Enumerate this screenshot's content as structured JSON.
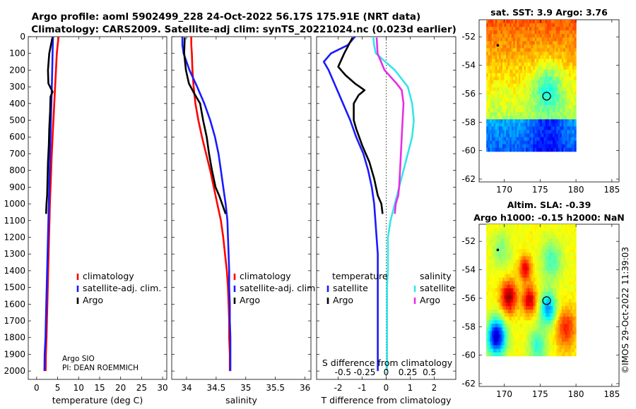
{
  "header": {
    "line1": "Argo profile: aoml 5902499_228 24-Oct-2022 56.17S 175.91E (NRT data)",
    "line2": "Climatology: CARS2009. Satellite-adj clim: synTS_20221024.nc (0.023d earlier)"
  },
  "colors": {
    "climatology": "#ff0000",
    "satellite": "#1a1aff",
    "argo": "#000000",
    "sal_satellite": "#33e6e6",
    "sal_argo": "#e62ee6"
  },
  "chart_data": [
    {
      "id": "temperature",
      "type": "line",
      "xlabel": "temperature (deg C)",
      "xlim": [
        -2,
        31
      ],
      "ylim": [
        2050,
        0
      ],
      "xticks": [
        0,
        5,
        10,
        15,
        20,
        25,
        30
      ],
      "yticks": [
        0,
        100,
        200,
        300,
        400,
        500,
        600,
        700,
        800,
        900,
        1000,
        1100,
        1200,
        1300,
        1400,
        1500,
        1600,
        1700,
        1800,
        1900,
        2000
      ],
      "legend": [
        "climatology",
        "satellite-adj. clim.",
        "Argo"
      ],
      "credit": [
        "Argo SIO",
        "PI: DEAN ROEMMICH"
      ],
      "series": [
        {
          "name": "climatology",
          "color": "#ff0000",
          "x": [
            5.2,
            5.0,
            4.8,
            4.6,
            4.4,
            4.2,
            4.0,
            3.8,
            3.6,
            3.45,
            3.3,
            3.15,
            3.05,
            2.95,
            2.85,
            2.75,
            2.65,
            2.55,
            2.45,
            2.35,
            2.2,
            2.15
          ],
          "depth": [
            0,
            50,
            100,
            200,
            300,
            400,
            500,
            600,
            700,
            800,
            900,
            1000,
            1100,
            1200,
            1300,
            1400,
            1500,
            1600,
            1700,
            1800,
            1900,
            2000
          ]
        },
        {
          "name": "satellite-adj. clim.",
          "color": "#1a1aff",
          "x": [
            3.9,
            3.85,
            3.8,
            3.7,
            3.6,
            3.5,
            3.4,
            3.3,
            3.2,
            3.1,
            3.0,
            2.9,
            2.8,
            2.7,
            2.6,
            2.5,
            2.4,
            2.3,
            2.2,
            2.1,
            1.9,
            1.85
          ],
          "depth": [
            0,
            50,
            100,
            200,
            300,
            400,
            500,
            600,
            700,
            800,
            900,
            1000,
            1100,
            1200,
            1300,
            1400,
            1500,
            1600,
            1700,
            1800,
            1900,
            2000
          ]
        },
        {
          "name": "Argo",
          "color": "#000000",
          "x": [
            3.76,
            3.0,
            2.7,
            2.8,
            3.8,
            3.3,
            3.2,
            3.0,
            2.9,
            2.7,
            2.6,
            2.5,
            2.35,
            2.25
          ],
          "depth": [
            5,
            100,
            200,
            280,
            330,
            360,
            450,
            550,
            650,
            750,
            850,
            950,
            1000,
            1060
          ]
        }
      ]
    },
    {
      "id": "salinity",
      "type": "line",
      "xlabel": "salinity",
      "xlim": [
        33.75,
        36.1
      ],
      "ylim": [
        2050,
        0
      ],
      "xticks": [
        34,
        34.5,
        35,
        35.5,
        36
      ],
      "legend": [
        "climatology",
        "satellite-adj. clim.",
        "Argo"
      ],
      "series": [
        {
          "name": "climatology",
          "color": "#ff0000",
          "x": [
            34.08,
            34.08,
            34.09,
            34.1,
            34.12,
            34.15,
            34.2,
            34.26,
            34.33,
            34.4,
            34.46,
            34.52,
            34.58,
            34.62,
            34.65,
            34.68,
            34.7,
            34.71,
            34.72,
            34.72,
            34.73,
            34.73
          ],
          "depth": [
            0,
            50,
            100,
            200,
            300,
            400,
            500,
            600,
            700,
            800,
            900,
            1000,
            1100,
            1200,
            1300,
            1400,
            1500,
            1600,
            1700,
            1800,
            1900,
            2000
          ]
        },
        {
          "name": "satellite-adj. clim.",
          "color": "#1a1aff",
          "x": [
            33.93,
            33.93,
            33.95,
            34.05,
            34.18,
            34.3,
            34.4,
            34.48,
            34.54,
            34.58,
            34.62,
            34.66,
            34.69,
            34.7,
            34.71,
            34.72,
            34.72,
            34.73,
            34.73,
            34.74,
            34.74,
            34.74
          ],
          "depth": [
            0,
            50,
            100,
            200,
            300,
            400,
            500,
            600,
            700,
            800,
            900,
            1000,
            1100,
            1200,
            1300,
            1400,
            1500,
            1600,
            1700,
            1800,
            1900,
            2000
          ]
        },
        {
          "name": "Argo",
          "color": "#000000",
          "x": [
            33.97,
            33.96,
            33.99,
            34.04,
            34.13,
            34.23,
            34.28,
            34.34,
            34.38,
            34.43,
            34.49,
            34.55,
            34.6,
            34.63,
            34.66
          ],
          "depth": [
            5,
            100,
            200,
            280,
            340,
            400,
            500,
            600,
            700,
            800,
            900,
            950,
            1000,
            1030,
            1060
          ]
        }
      ]
    },
    {
      "id": "difference",
      "type": "line",
      "xlabel": "T difference from climatology",
      "xlabel_top": "S difference from climatology",
      "xlim": [
        -2.9,
        2.9
      ],
      "ylim": [
        2050,
        0
      ],
      "xticks": [
        -2,
        -1,
        0,
        1,
        2
      ],
      "xticks_s": [
        -0.5,
        -0.25,
        0,
        0.25,
        0.5
      ],
      "legend_left_title": "temperature",
      "legend_right_title": "salinity",
      "legend_left": [
        "satellite",
        "Argo"
      ],
      "legend_right": [
        "satellite",
        "Argo"
      ],
      "series": [
        {
          "name": "T satellite",
          "color": "#1a1aff",
          "x": [
            -1.3,
            -1.6,
            -2.3,
            -2.6,
            -2.4,
            -2.1,
            -1.8,
            -1.5,
            -1.25,
            -0.95,
            -0.75,
            -0.6,
            -0.5,
            -0.45,
            -0.4,
            -0.35,
            -0.35,
            -0.35,
            -0.35,
            -0.35,
            -0.35,
            -0.35
          ],
          "depth": [
            0,
            50,
            100,
            150,
            200,
            300,
            400,
            500,
            600,
            700,
            800,
            900,
            1000,
            1100,
            1200,
            1300,
            1400,
            1500,
            1600,
            1700,
            1800,
            2000
          ]
        },
        {
          "name": "T Argo",
          "color": "#000000",
          "x": [
            -1.4,
            -1.75,
            -2.0,
            -1.7,
            -1.3,
            -0.9,
            -1.15,
            -1.35,
            -1.35,
            -1.25,
            -1.0,
            -0.7,
            -0.5,
            -0.35,
            -0.2,
            -0.15
          ],
          "depth": [
            5,
            100,
            180,
            230,
            280,
            320,
            350,
            400,
            500,
            550,
            650,
            750,
            850,
            950,
            1000,
            1060
          ]
        },
        {
          "name": "S satellite",
          "color": "#33e6e6",
          "x": [
            -0.15,
            -0.14,
            -0.12,
            0.1,
            0.25,
            0.3,
            0.32,
            0.3,
            0.25,
            0.2,
            0.15,
            0.1,
            0.05,
            0.02,
            0.02,
            0.02,
            0.01,
            0.01,
            0.01,
            0.01,
            0.01,
            0.01
          ],
          "depth": [
            0,
            50,
            100,
            200,
            300,
            400,
            500,
            600,
            700,
            800,
            900,
            1000,
            1100,
            1200,
            1300,
            1400,
            1500,
            1600,
            1700,
            1800,
            1900,
            2000
          ]
        },
        {
          "name": "S Argo",
          "color": "#e62ee6",
          "x": [
            -0.11,
            -0.1,
            -0.02,
            0.12,
            0.18,
            0.2,
            0.19,
            0.18,
            0.17,
            0.16,
            0.15,
            0.14,
            0.11,
            0.1
          ],
          "depth": [
            5,
            100,
            200,
            280,
            320,
            400,
            500,
            600,
            700,
            800,
            900,
            950,
            1000,
            1060
          ]
        }
      ]
    }
  ],
  "maps": [
    {
      "id": "sst-map",
      "title": "sat. SST: 3.9 Argo: 3.76",
      "xlim": [
        166.5,
        186
      ],
      "ylim": [
        -62.2,
        -50.8
      ],
      "xticks": [
        170,
        175,
        180,
        185
      ],
      "yticks": [
        -52,
        -54,
        -56,
        -58,
        -60,
        -62
      ],
      "data_extent": {
        "lon": [
          167.5,
          180
        ],
        "lat": [
          -60,
          -50.8
        ]
      },
      "float_lon": 175.91,
      "float_lat": -56.17,
      "prev_lon": 169.1,
      "prev_lat": -52.6
    },
    {
      "id": "sla-map",
      "title_line1": "Altim. SLA: -0.39",
      "title_line2": "Argo h1000: -0.15 h2000: NaN",
      "xlim": [
        166.5,
        186
      ],
      "ylim": [
        -62.2,
        -50.8
      ],
      "xticks": [
        170,
        175,
        180,
        185
      ],
      "yticks": [
        -52,
        -54,
        -56,
        -58,
        -60,
        -62
      ],
      "data_extent": {
        "lon": [
          167.5,
          180
        ],
        "lat": [
          -60,
          -50.8
        ]
      },
      "float_lon": 175.91,
      "float_lat": -56.17,
      "prev_lon": 169.1,
      "prev_lat": -52.6
    }
  ],
  "credit_side": "©IMOS 29-Oct-2022 11:39:03"
}
